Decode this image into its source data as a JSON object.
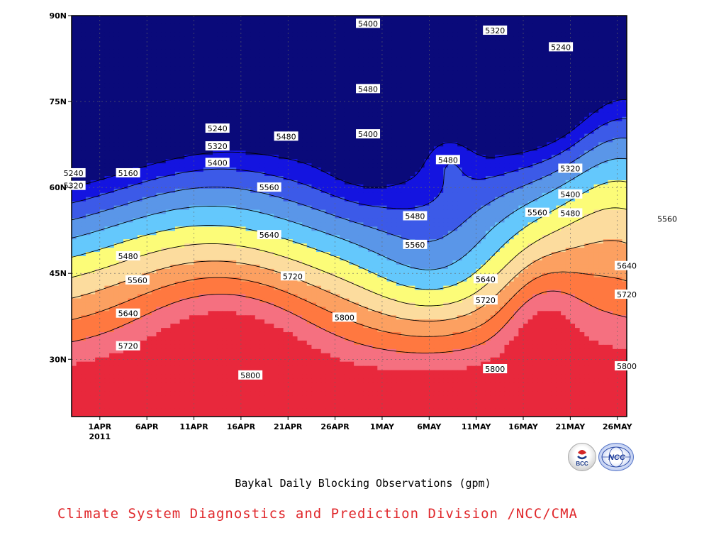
{
  "chart_data": {
    "type": "contour",
    "title": "Baykal Daily Blocking Observations (gpm)",
    "x_start_label": "1APR",
    "year_label": "2011",
    "x_tick_labels": [
      "1APR",
      "6APR",
      "11APR",
      "16APR",
      "21APR",
      "26APR",
      "1MAY",
      "6MAY",
      "11MAY",
      "16MAY",
      "21MAY",
      "26MAY"
    ],
    "y_tick_labels": [
      "30N",
      "45N",
      "60N",
      "75N",
      "90N"
    ],
    "y_tick_values": [
      30,
      45,
      60,
      75,
      90
    ],
    "xlim_days": [
      -3,
      56
    ],
    "ylim_lat": [
      20,
      90
    ],
    "grid": true,
    "levels": [
      5160,
      5240,
      5320,
      5400,
      5480,
      5560,
      5640,
      5720,
      5800
    ],
    "fill_colors": [
      "#f57080",
      "#ff7840",
      "#fca061",
      "#fcdc9e",
      "#fcfc78",
      "#64c8fc",
      "#5a96e8",
      "#3c5ae8",
      "#1414e0",
      "#0a0a7a"
    ],
    "peak_color": "#e8283c",
    "contour_labels": [
      {
        "day": -2.8,
        "lat": 62.5,
        "value": "5240"
      },
      {
        "day": -2.8,
        "lat": 60.3,
        "value": "5320"
      },
      {
        "day": 3,
        "lat": 62.5,
        "value": "5160"
      },
      {
        "day": 3,
        "lat": 48,
        "value": "5480"
      },
      {
        "day": 4,
        "lat": 43.8,
        "value": "5560"
      },
      {
        "day": 3,
        "lat": 38,
        "value": "5640"
      },
      {
        "day": 3,
        "lat": 32.3,
        "value": "5720"
      },
      {
        "day": 12.5,
        "lat": 70.3,
        "value": "5240"
      },
      {
        "day": 12.5,
        "lat": 67.2,
        "value": "5320"
      },
      {
        "day": 12.5,
        "lat": 64.3,
        "value": "5400"
      },
      {
        "day": 19.8,
        "lat": 68.9,
        "value": "5480"
      },
      {
        "day": 18,
        "lat": 60,
        "value": "5560"
      },
      {
        "day": 18,
        "lat": 51.7,
        "value": "5640"
      },
      {
        "day": 20.5,
        "lat": 44.5,
        "value": "5720"
      },
      {
        "day": 26,
        "lat": 37.3,
        "value": "5800"
      },
      {
        "day": 16,
        "lat": 27.2,
        "value": "5800"
      },
      {
        "day": 28.5,
        "lat": 88.6,
        "value": "5400"
      },
      {
        "day": 28.5,
        "lat": 77.2,
        "value": "5480"
      },
      {
        "day": 28.5,
        "lat": 69.3,
        "value": "5400"
      },
      {
        "day": 33.5,
        "lat": 55,
        "value": "5480"
      },
      {
        "day": 33.5,
        "lat": 50,
        "value": "5560"
      },
      {
        "day": 37,
        "lat": 64.8,
        "value": "5480"
      },
      {
        "day": 42,
        "lat": 87.4,
        "value": "5320"
      },
      {
        "day": 41,
        "lat": 44,
        "value": "5640"
      },
      {
        "day": 41,
        "lat": 40.3,
        "value": "5720"
      },
      {
        "day": 42,
        "lat": 28.3,
        "value": "5800"
      },
      {
        "day": 49,
        "lat": 84.5,
        "value": "5240"
      },
      {
        "day": 50,
        "lat": 63.3,
        "value": "5320"
      },
      {
        "day": 50,
        "lat": 58.8,
        "value": "5400"
      },
      {
        "day": 50,
        "lat": 55.5,
        "value": "5480"
      },
      {
        "day": 46.5,
        "lat": 55.6,
        "value": "5560"
      },
      {
        "day": 60.3,
        "lat": 54.5,
        "value": "5560"
      },
      {
        "day": 56,
        "lat": 46.3,
        "value": "5640"
      },
      {
        "day": 56,
        "lat": 41.3,
        "value": "5720"
      },
      {
        "day": 56,
        "lat": 28.8,
        "value": "5800"
      }
    ]
  },
  "captions": {
    "title": "Baykal Daily Blocking Observations (gpm)",
    "credit": "Climate System Diagnostics and Prediction Division /NCC/CMA",
    "credit_color": "#e0282c"
  },
  "logos": [
    {
      "name": "bcc-logo-icon",
      "text": "BCC"
    },
    {
      "name": "ncc-logo-icon",
      "text": "NCC"
    }
  ]
}
